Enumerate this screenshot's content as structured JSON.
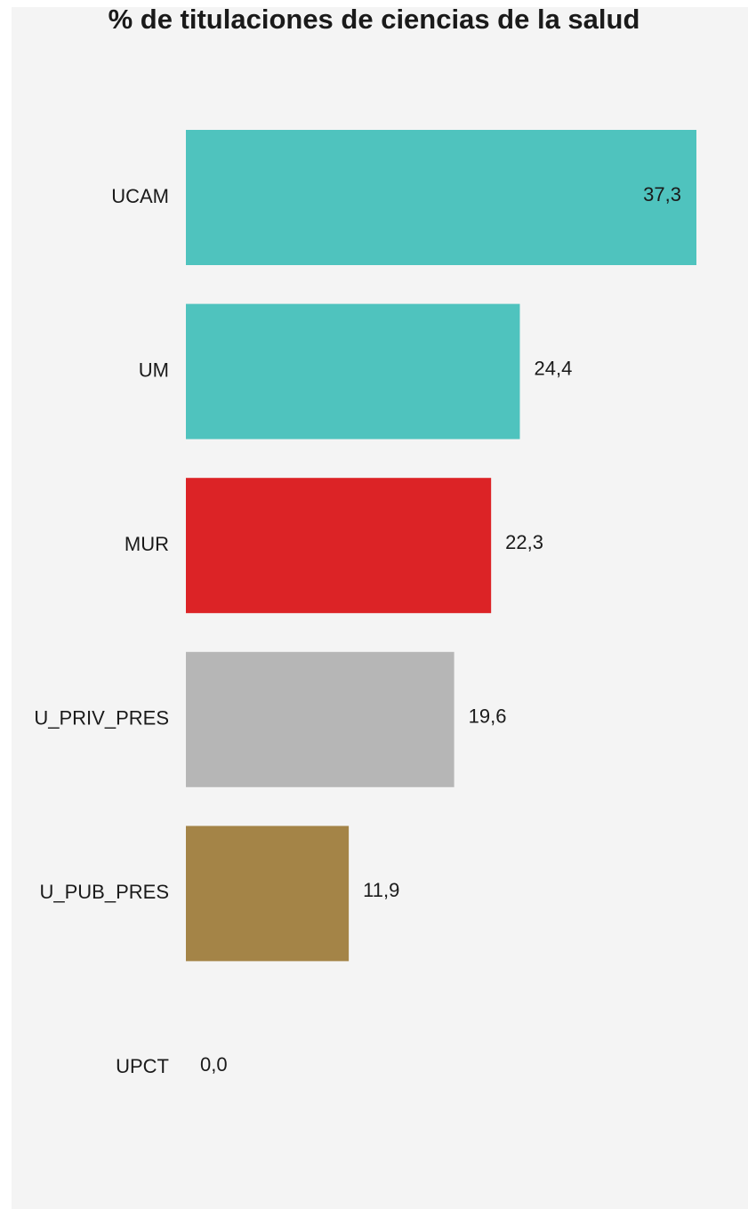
{
  "chart_data": {
    "type": "bar",
    "orientation": "horizontal",
    "title": "% de titulaciones de ciencias de la salud",
    "xlabel": "",
    "ylabel": "",
    "xlim": [
      0,
      37.3
    ],
    "grid": false,
    "legend": "none",
    "categories": [
      "UCAM",
      "UM",
      "MUR",
      "U_PRIV_PRES",
      "U_PUB_PRES",
      "UPCT"
    ],
    "values": [
      37.3,
      24.4,
      22.3,
      19.6,
      11.9,
      0.0
    ],
    "value_labels": [
      "37,3",
      "24,4",
      "22,3",
      "19,6",
      "11,9",
      "0,0"
    ],
    "colors": [
      "#4fc3be",
      "#4fc3be",
      "#dc2326",
      "#b6b6b6",
      "#a48447",
      "#4fc3be"
    ]
  }
}
